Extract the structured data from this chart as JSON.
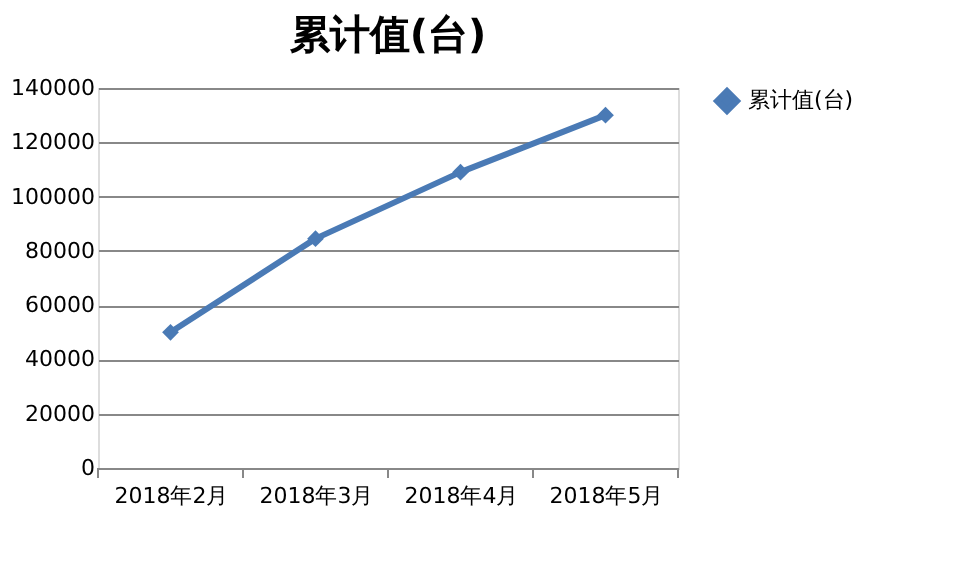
{
  "chart_data": {
    "type": "line",
    "title": "累计值(台)",
    "categories": [
      "2018年2月",
      "2018年3月",
      "2018年4月",
      "2018年5月"
    ],
    "series": [
      {
        "name": "累计值(台)",
        "color": "#4a7ab5",
        "values": [
          50000,
          84500,
          109000,
          130000
        ]
      }
    ],
    "ylim": [
      0,
      140000
    ],
    "yticks": [
      0,
      20000,
      40000,
      60000,
      80000,
      100000,
      120000,
      140000
    ],
    "grid": "y",
    "legend": "right",
    "marker": "diamond",
    "line_style": "solid"
  }
}
